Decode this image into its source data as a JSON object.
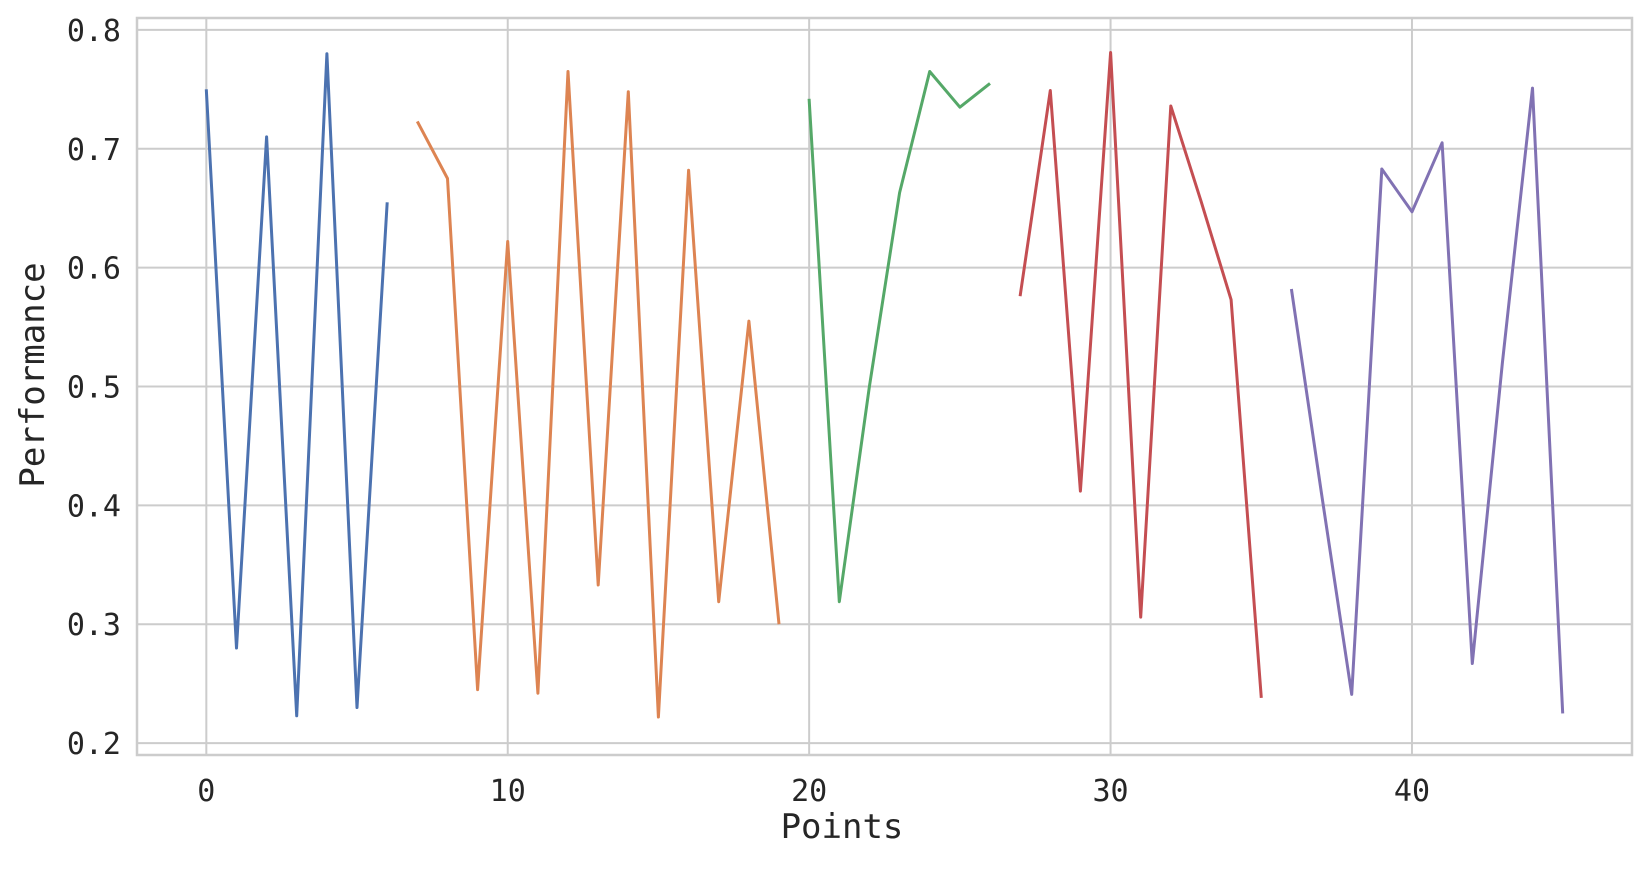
{
  "chart_data": {
    "type": "line",
    "xlabel": "Points",
    "ylabel": "Performance",
    "xlim": [
      -2.3,
      47.3
    ],
    "ylim": [
      0.19,
      0.81
    ],
    "xticks": [
      0,
      10,
      20,
      30,
      40
    ],
    "yticks": [
      0.2,
      0.3,
      0.4,
      0.5,
      0.6,
      0.7,
      0.8
    ],
    "ytick_labels": [
      "0.2",
      "0.3",
      "0.4",
      "0.5",
      "0.6",
      "0.7",
      "0.8"
    ],
    "grid": true,
    "legend": "none",
    "series": [
      {
        "color": "#4c72b0",
        "x": [
          0,
          1,
          2,
          3,
          4,
          5,
          6
        ],
        "y": [
          0.75,
          0.28,
          0.71,
          0.223,
          0.78,
          0.23,
          0.655
        ]
      },
      {
        "color": "#dd8452",
        "x": [
          7,
          8,
          9,
          10,
          11,
          12,
          13,
          14,
          15,
          16,
          17,
          18,
          19
        ],
        "y": [
          0.723,
          0.675,
          0.245,
          0.622,
          0.242,
          0.765,
          0.333,
          0.748,
          0.222,
          0.682,
          0.319,
          0.555,
          0.3
        ]
      },
      {
        "color": "#55a868",
        "x": [
          20,
          21,
          22,
          23,
          24,
          25,
          26
        ],
        "y": [
          0.742,
          0.319,
          0.5,
          0.663,
          0.765,
          0.735,
          0.755
        ]
      },
      {
        "color": "#c44e52",
        "x": [
          27,
          28,
          29,
          30,
          31,
          32,
          33,
          34,
          35
        ],
        "y": [
          0.576,
          0.749,
          0.412,
          0.781,
          0.306,
          0.736,
          0.656,
          0.573,
          0.238
        ]
      },
      {
        "color": "#8172b3",
        "x": [
          36,
          37,
          38,
          39,
          40,
          41,
          42,
          43,
          44,
          45
        ],
        "y": [
          0.582,
          0.41,
          0.241,
          0.683,
          0.647,
          0.705,
          0.267,
          0.52,
          0.751,
          0.225
        ]
      }
    ]
  }
}
